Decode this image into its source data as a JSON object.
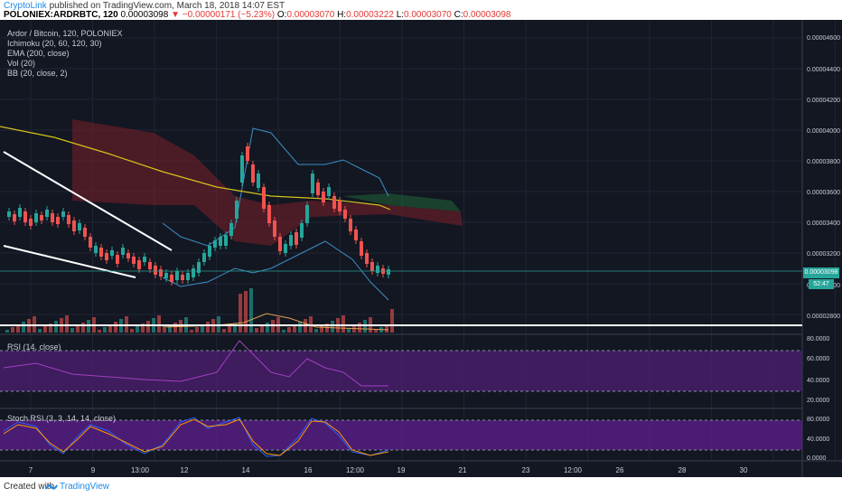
{
  "header": {
    "publisher": "CryptoLink",
    "published_text": "published on TradingView.com, March 18, 2018 14:07 EST",
    "symbol": "POLONIEX:ARDRBTC, 120",
    "last": "0.00003098",
    "change": "−0.00000171 (−5.23%)",
    "open_label": "O:",
    "open": "0.00003070",
    "high_label": "H:",
    "high": "0.00003222",
    "low_label": "L:",
    "low": "0.00003070",
    "close_label": "C:",
    "close": "0.00003098"
  },
  "legend": {
    "title": "Ardor / Bitcoin, 120, POLONIEX",
    "indicators": [
      "Ichimoku (20, 60, 120, 30)",
      "EMA (200, close)",
      "Vol (20)",
      "BB (20, close, 2)"
    ]
  },
  "price_axis": [
    "0.00004600",
    "0.00004400",
    "0.00004200",
    "0.00004000",
    "0.00003800",
    "0.00003600",
    "0.00003400",
    "0.00003200",
    "0.00003000",
    "0.00002800"
  ],
  "price_badge": "0.00003098",
  "time_badge": "52:47",
  "rsi": {
    "label": "RSI (14, close)",
    "axis": [
      "80.0000",
      "60.0000",
      "40.0000",
      "20.0000"
    ]
  },
  "stoch": {
    "label": "Stoch RSI (3, 3, 14, 14, close)",
    "axis": [
      "80.0000",
      "40.0000",
      "0.0000"
    ]
  },
  "time_axis": [
    "7",
    "9",
    "13:00",
    "12",
    "14",
    "16",
    "12:00",
    "19",
    "21",
    "23",
    "12:00",
    "26",
    "28",
    "30"
  ],
  "footer": {
    "created_with": "Created with",
    "brand": "TradingView"
  },
  "colors": {
    "background": "#131722",
    "up": "#26a69a",
    "down": "#ef5350",
    "ema": "#d4c21a",
    "rsi_band": "#4a1e6e",
    "stoch_band": "#5a1e8a",
    "brand": "#1e88e5"
  }
}
